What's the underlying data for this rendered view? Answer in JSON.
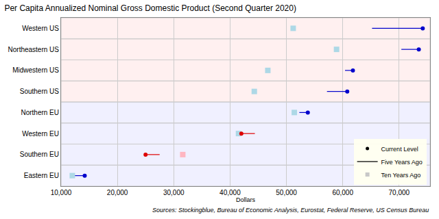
{
  "chart_data": {
    "type": "dot_range",
    "title": "Per Capita Annualized Nominal Gross Domestic Product (Second Quarter 2020)",
    "x_label": "Dollars",
    "annotations": [
      "Sources: Stockingblue, Bureau of Economic Analysis, Eurostat, Federal Reserve, US Census Bureau"
    ],
    "categories": [
      "Western US",
      "Northeastern US",
      "Midwestern US",
      "Southern US",
      "Northern EU",
      "Western EU",
      "Southern EU",
      "Eastern EU"
    ],
    "series": [
      {
        "name": "Current Level",
        "type": "marker",
        "marker": "circle",
        "values": [
          74200,
          73500,
          61800,
          60800,
          53800,
          42000,
          25000,
          14200
        ],
        "colors": [
          "#0000cc",
          "#0000cc",
          "#0000cc",
          "#0000cc",
          "#0000cc",
          "#dd0000",
          "#dd0000",
          "#0000cc"
        ]
      },
      {
        "name": "Five Years Ago",
        "type": "segment",
        "line_style": "solid",
        "values": [
          65200,
          70400,
          60400,
          57200,
          52300,
          44400,
          27500,
          12000
        ],
        "colors": [
          "#0000cc",
          "#0000cc",
          "#0000cc",
          "#0000cc",
          "#0000cc",
          "#dd0000",
          "#dd0000",
          "#0000cc"
        ]
      },
      {
        "name": "Ten Years Ago",
        "type": "marker",
        "marker": "square",
        "values": [
          51200,
          58900,
          46700,
          44300,
          51400,
          41500,
          31600,
          12000
        ],
        "colors": [
          "#add8e6",
          "#add8e6",
          "#add8e6",
          "#add8e6",
          "#add8e6",
          "#add8e6",
          "#ffb6c1",
          "#add8e6"
        ]
      }
    ],
    "xlim": [
      10000,
      75500
    ],
    "xticks": [
      {
        "value": 10000,
        "label": "10,000"
      },
      {
        "value": 20000,
        "label": "20,000"
      },
      {
        "value": 30000,
        "label": "30,000"
      },
      {
        "value": 40000,
        "label": "40,000"
      },
      {
        "value": 50000,
        "label": "50,000"
      },
      {
        "value": 60000,
        "label": "60,000"
      },
      {
        "value": 70000,
        "label": "70,000"
      }
    ],
    "grid": true,
    "legend": "bottom right",
    "orientation": "horizontal"
  }
}
